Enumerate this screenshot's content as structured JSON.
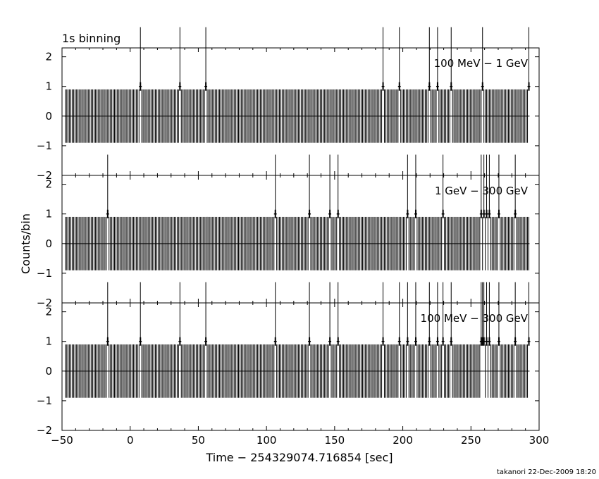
{
  "figure": {
    "title": "1s binning",
    "xlabel": "Time − 254329074.716854 [sec]",
    "ylabel": "Counts/bin",
    "footer": "takanori 22-Dec-2009 18:20"
  },
  "chart_data": [
    {
      "type": "bar",
      "label": "100 MeV − 1 GeV",
      "bin_width_s": 1,
      "xlim": [
        -50,
        300
      ],
      "ylim": [
        -2,
        2.3
      ],
      "yticks": [
        -2,
        -1,
        0,
        1,
        2
      ],
      "xticks": [
        -50,
        0,
        50,
        100,
        150,
        200,
        250,
        300
      ],
      "data_range": [
        -48,
        292
      ],
      "typical_count": 0,
      "typical_error": 0.9,
      "events": [
        7,
        36,
        55,
        185,
        197,
        219,
        225,
        235,
        258,
        292
      ],
      "event_count": 1,
      "event_error_upper": 2.0,
      "event_error_lower": 0.0
    },
    {
      "type": "bar",
      "label": "1 GeV − 300 GeV",
      "bin_width_s": 1,
      "xlim": [
        -50,
        300
      ],
      "ylim": [
        -2,
        2.3
      ],
      "yticks": [
        -2,
        -1,
        0,
        1,
        2
      ],
      "xticks": [
        -50,
        0,
        50,
        100,
        150,
        200,
        250,
        300
      ],
      "data_range": [
        -48,
        292
      ],
      "typical_count": 0,
      "typical_error": 0.9,
      "events": [
        -17,
        106,
        131,
        146,
        152,
        203,
        209,
        229,
        257,
        259,
        261,
        263,
        270,
        282
      ],
      "event_count": 1,
      "event_error_upper": 2.0,
      "event_error_lower": 0.0
    },
    {
      "type": "bar",
      "label": "100 MeV − 300 GeV",
      "bin_width_s": 1,
      "xlim": [
        -50,
        300
      ],
      "ylim": [
        -2,
        2.3
      ],
      "yticks": [
        -2,
        -1,
        0,
        1,
        2
      ],
      "xticks": [
        -50,
        0,
        50,
        100,
        150,
        200,
        250,
        300
      ],
      "data_range": [
        -48,
        292
      ],
      "typical_count": 0,
      "typical_error": 0.9,
      "events": [
        -17,
        7,
        36,
        55,
        106,
        131,
        146,
        152,
        185,
        197,
        203,
        209,
        219,
        225,
        229,
        235,
        257,
        258,
        259,
        261,
        263,
        270,
        282,
        292
      ],
      "event_count": 1,
      "event_error_upper": 2.0,
      "event_error_lower": 0.0
    }
  ]
}
